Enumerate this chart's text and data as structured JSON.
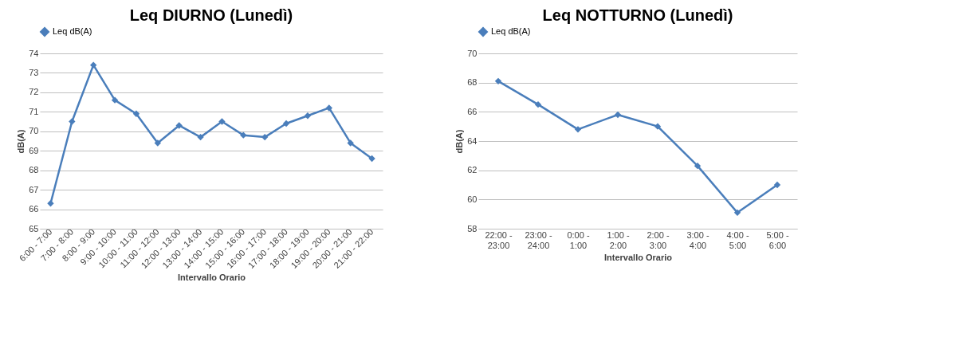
{
  "chart_data": [
    {
      "type": "line",
      "title": "Leq DIURNO (Lunedì)",
      "xlabel": "Intervallo Orario",
      "ylabel": "dB(A)",
      "categories": [
        "6:00 - 7:00",
        "7:00 - 8:00",
        "8:00 - 9:00",
        "9:00 - 10:00",
        "10:00 - 11:00",
        "11:00 - 12:00",
        "12:00 - 13:00",
        "13:00 - 14:00",
        "14:00 - 15:00",
        "15:00 - 16:00",
        "16:00 - 17:00",
        "17:00 - 18:00",
        "18:00 - 19:00",
        "19:00 - 20:00",
        "20:00 - 21:00",
        "21:00 - 22:00"
      ],
      "series": [
        {
          "name": "Leq dB(A)",
          "color": "#4a7ebb",
          "values": [
            66.3,
            70.5,
            73.4,
            71.6,
            70.9,
            69.4,
            70.3,
            69.7,
            70.5,
            69.8,
            69.7,
            70.4,
            70.8,
            71.2,
            69.4,
            68.6
          ]
        }
      ],
      "ylim": [
        65,
        74
      ],
      "yticks": [
        65,
        66,
        67,
        68,
        69,
        70,
        71,
        72,
        73,
        74
      ],
      "grid": "y",
      "legend": "top",
      "marker": "diamond",
      "line_style": "solid"
    },
    {
      "type": "line",
      "title": "Leq NOTTURNO (Lunedì)",
      "xlabel": "Intervallo Orario",
      "ylabel": "dB(A)",
      "categories": [
        "22:00 - 23:00",
        "23:00 - 24:00",
        "0:00 - 1:00",
        "1:00 - 2:00",
        "2:00 - 3:00",
        "3:00 - 4:00",
        "4:00 - 5:00",
        "5:00 - 6:00"
      ],
      "series": [
        {
          "name": "Leq dB(A)",
          "color": "#4a7ebb",
          "values": [
            68.1,
            66.5,
            64.8,
            65.8,
            65.0,
            62.3,
            59.1,
            61.0
          ]
        }
      ],
      "ylim": [
        58,
        70
      ],
      "yticks": [
        58,
        60,
        62,
        64,
        66,
        68,
        70
      ],
      "grid": "y",
      "legend": "top",
      "marker": "diamond",
      "line_style": "solid"
    }
  ]
}
